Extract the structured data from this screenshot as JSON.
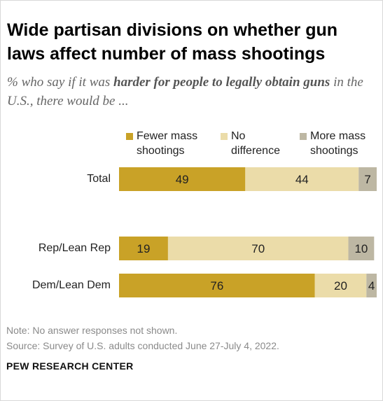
{
  "title": "Wide partisan divisions on whether gun laws affect number of mass shootings",
  "subtitle_pre": "% who say if it was ",
  "subtitle_bold": "harder for people to legally obtain guns",
  "subtitle_post": " in the U.S., there would be ...",
  "note": "Note: No answer responses not shown.",
  "source": "Source: Survey of U.S. adults conducted June 27-July 4, 2022.",
  "org": "PEW RESEARCH CENTER",
  "chart_data": {
    "type": "bar",
    "orientation": "horizontal",
    "stacked": true,
    "categories": [
      "Total",
      "Rep/Lean Rep",
      "Dem/Lean Dem"
    ],
    "series": [
      {
        "name": "Fewer mass shootings",
        "legend_label": "Fewer mass\nshootings",
        "color": "#c9a227",
        "values": [
          49,
          19,
          76
        ]
      },
      {
        "name": "No difference",
        "legend_label": "No\ndifference",
        "color": "#ebdca9",
        "values": [
          44,
          70,
          20
        ]
      },
      {
        "name": "More mass shootings",
        "legend_label": "More mass\nshootings",
        "color": "#bdb7a3",
        "values": [
          7,
          10,
          4
        ]
      }
    ],
    "xlim": [
      0,
      100
    ],
    "grid": false,
    "legend": "top"
  }
}
